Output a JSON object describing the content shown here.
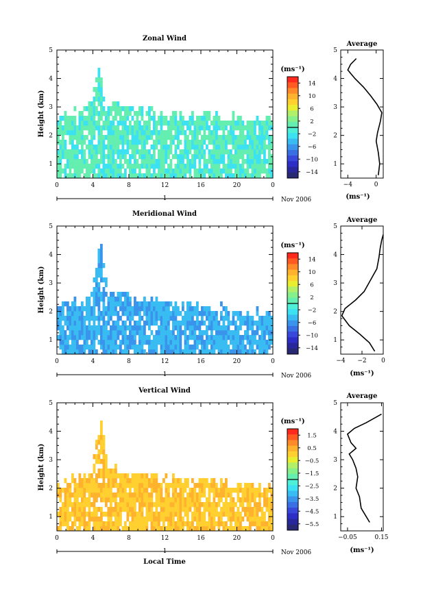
{
  "colors": {
    "scale": [
      "#ff2a1d",
      "#ff5a22",
      "#ff8a2a",
      "#ffb22e",
      "#ffd030",
      "#e9ee31",
      "#b3f06a",
      "#86f08a",
      "#64eeb0",
      "#4ef0d8",
      "#3ce2f2",
      "#38bcf2",
      "#3b94ec",
      "#3a6fe4",
      "#3848d8",
      "#2c2ec6",
      "#28289c",
      "#292973"
    ],
    "frame": "#000000"
  },
  "chart_data": [
    {
      "type": "heatmap",
      "id": "zonal",
      "title": "Zonal Wind",
      "ylabel": "Height (km)",
      "x_ticks": [
        "0",
        "4",
        "8",
        "12",
        "16",
        "20",
        "0"
      ],
      "y_ticks": [
        "1",
        "2",
        "3",
        "4",
        "5"
      ],
      "xlim": [
        0,
        24
      ],
      "ylim": [
        0.5,
        5
      ],
      "date_label": "Nov 2006",
      "date_bar_label": "1",
      "colorbar": {
        "unit": "(ms⁻¹)",
        "ticks": [
          "14",
          "10",
          "6",
          "2",
          "−2",
          "−6",
          "−10",
          "−14"
        ],
        "range": [
          -16,
          16
        ]
      },
      "field": {
        "value_mean": -2.2,
        "base_color_index": 8,
        "alt_color_index": 10,
        "top_profile": [
          [
            0,
            2.7
          ],
          [
            2,
            2.9
          ],
          [
            3.5,
            3.1
          ],
          [
            4.5,
            4.5
          ],
          [
            5.5,
            3.2
          ],
          [
            8,
            3.0
          ],
          [
            11,
            2.9
          ],
          [
            14,
            2.8
          ],
          [
            17,
            2.9
          ],
          [
            20,
            2.7
          ],
          [
            24,
            2.6
          ]
        ]
      },
      "profile": {
        "title": "Average",
        "xlabel": "(ms⁻¹)",
        "x_ticks": [
          "−4",
          "0"
        ],
        "y_ticks": [
          "1",
          "2",
          "3",
          "4",
          "5"
        ],
        "xlim": [
          -5,
          1
        ],
        "ylim": [
          0.5,
          5
        ],
        "points": [
          [
            0.3,
            0.6
          ],
          [
            0.5,
            1.0
          ],
          [
            0.3,
            1.4
          ],
          [
            0.0,
            1.8
          ],
          [
            0.2,
            2.1
          ],
          [
            0.6,
            2.5
          ],
          [
            0.8,
            2.8
          ],
          [
            0.1,
            3.1
          ],
          [
            -0.8,
            3.4
          ],
          [
            -1.8,
            3.7
          ],
          [
            -3.0,
            4.0
          ],
          [
            -4.0,
            4.3
          ],
          [
            -3.6,
            4.5
          ],
          [
            -2.8,
            4.7
          ]
        ]
      }
    },
    {
      "type": "heatmap",
      "id": "meridional",
      "title": "Meridional Wind",
      "ylabel": "Height (km)",
      "x_ticks": [
        "0",
        "4",
        "8",
        "12",
        "16",
        "20",
        "0"
      ],
      "y_ticks": [
        "1",
        "2",
        "3",
        "4",
        "5"
      ],
      "xlim": [
        0,
        24
      ],
      "ylim": [
        0.5,
        5
      ],
      "date_label": "Nov 2006",
      "date_bar_label": "1",
      "colorbar": {
        "unit": "(ms⁻¹)",
        "ticks": [
          "14",
          "10",
          "6",
          "2",
          "−2",
          "−6",
          "−10",
          "−14"
        ],
        "range": [
          -16,
          16
        ]
      },
      "field": {
        "value_mean": -5.0,
        "base_color_index": 11,
        "alt_color_index": 12,
        "top_profile": [
          [
            0,
            2.3
          ],
          [
            2,
            2.4
          ],
          [
            3.5,
            2.5
          ],
          [
            4.8,
            4.5
          ],
          [
            5.5,
            2.8
          ],
          [
            8,
            2.5
          ],
          [
            11,
            2.4
          ],
          [
            14,
            2.3
          ],
          [
            17,
            2.2
          ],
          [
            20,
            2.1
          ],
          [
            24,
            2.0
          ]
        ]
      },
      "profile": {
        "title": "Average",
        "xlabel": "(ms⁻¹)",
        "x_ticks": [
          "−4",
          "−2",
          "0"
        ],
        "y_ticks": [
          "1",
          "2",
          "3",
          "4",
          "5"
        ],
        "xlim": [
          -4,
          0
        ],
        "ylim": [
          0.5,
          5
        ],
        "points": [
          [
            -0.8,
            0.6
          ],
          [
            -1.3,
            0.9
          ],
          [
            -2.2,
            1.2
          ],
          [
            -3.2,
            1.5
          ],
          [
            -3.9,
            1.85
          ],
          [
            -3.6,
            2.1
          ],
          [
            -2.6,
            2.4
          ],
          [
            -1.8,
            2.7
          ],
          [
            -1.2,
            3.1
          ],
          [
            -0.6,
            3.5
          ],
          [
            -0.4,
            3.9
          ],
          [
            -0.3,
            4.2
          ],
          [
            -0.15,
            4.5
          ],
          [
            0.0,
            4.7
          ]
        ]
      }
    },
    {
      "type": "heatmap",
      "id": "vertical",
      "title": "Vertical Wind",
      "ylabel": "Height (km)",
      "xlabel": "Local Time",
      "x_ticks": [
        "0",
        "4",
        "8",
        "12",
        "16",
        "20",
        "0"
      ],
      "y_ticks": [
        "1",
        "2",
        "3",
        "4",
        "5"
      ],
      "xlim": [
        0,
        24
      ],
      "ylim": [
        0.5,
        5
      ],
      "date_label": "Nov 2006",
      "date_bar_label": "1",
      "colorbar": {
        "unit": "(ms⁻¹)",
        "ticks": [
          "1.5",
          "0.5",
          "−0.5",
          "−1.5",
          "−2.5",
          "−3.5",
          "−4.5",
          "−5.5"
        ],
        "range": [
          -6,
          2
        ]
      },
      "field": {
        "value_mean": 0.6,
        "base_color_index": 4,
        "alt_color_index": 3,
        "top_profile": [
          [
            0,
            2.2
          ],
          [
            2,
            2.4
          ],
          [
            3.5,
            2.6
          ],
          [
            4.8,
            4.5
          ],
          [
            5.5,
            2.9
          ],
          [
            8,
            2.6
          ],
          [
            11,
            2.5
          ],
          [
            14,
            2.4
          ],
          [
            17,
            2.3
          ],
          [
            20,
            2.2
          ],
          [
            24,
            2.1
          ]
        ]
      },
      "profile": {
        "title": "Average",
        "xlabel": "(ms⁻¹)",
        "x_ticks": [
          "−0.05",
          "0.15"
        ],
        "y_ticks": [
          "1",
          "2",
          "3",
          "4",
          "5"
        ],
        "xlim": [
          -0.09,
          0.16
        ],
        "ylim": [
          0.5,
          5
        ],
        "points": [
          [
            0.08,
            0.8
          ],
          [
            0.06,
            1.0
          ],
          [
            0.03,
            1.3
          ],
          [
            0.02,
            1.7
          ],
          [
            0.0,
            2.0
          ],
          [
            0.01,
            2.4
          ],
          [
            0.0,
            2.7
          ],
          [
            -0.02,
            3.0
          ],
          [
            -0.04,
            3.2
          ],
          [
            0.0,
            3.4
          ],
          [
            -0.03,
            3.6
          ],
          [
            -0.05,
            3.9
          ],
          [
            -0.01,
            4.1
          ],
          [
            0.06,
            4.3
          ],
          [
            0.15,
            4.6
          ]
        ]
      }
    }
  ]
}
